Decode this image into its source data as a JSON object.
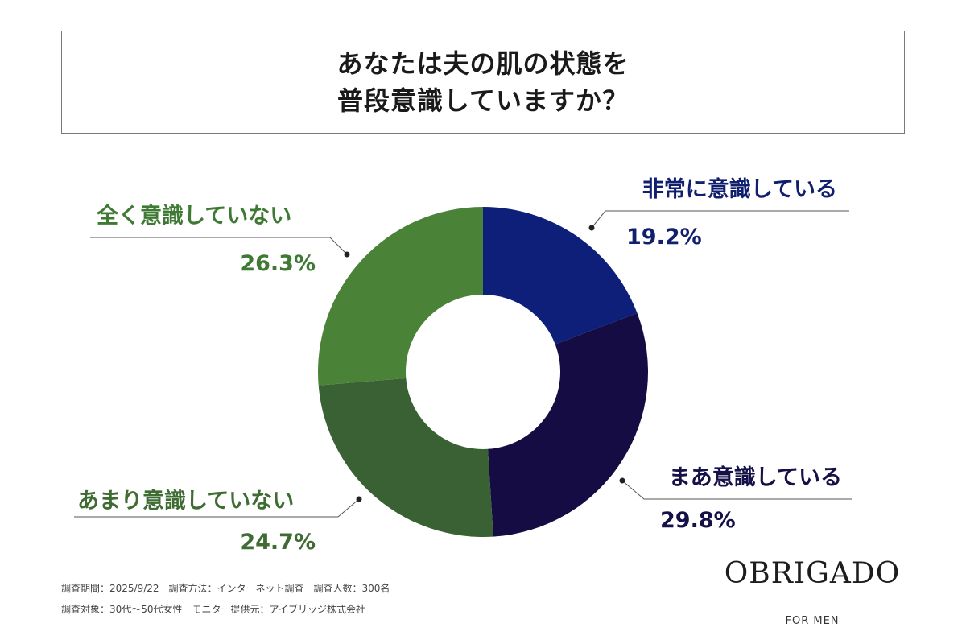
{
  "header": {
    "title_line1": "あなたは夫の肌の状態を",
    "title_line2": "普段意識していますか？"
  },
  "chart_data": {
    "type": "pie",
    "donut": true,
    "slices": [
      {
        "label": "非常に意識している",
        "value": 19.2,
        "value_text": "19.2%",
        "color": "#0e1f7a",
        "label_color": "#10206f"
      },
      {
        "label": "まあ意識している",
        "value": 29.8,
        "value_text": "29.8%",
        "color": "#140c42",
        "label_color": "#151048"
      },
      {
        "label": "あまり意識していない",
        "value": 24.7,
        "value_text": "24.7%",
        "color": "#3a6133",
        "label_color": "#3e6c33"
      },
      {
        "label": "全く意識していない",
        "value": 26.3,
        "value_text": "26.3%",
        "color": "#4a8237",
        "label_color": "#3f7a34"
      }
    ]
  },
  "footer": {
    "line1": "調査期間：2025/9/22　調査方法：インターネット調査　調査人数：300名",
    "line2": "調査対象：30代〜50代女性　モニター提供元：アイブリッジ株式会社"
  },
  "brand": {
    "logo": "OBRIGADO",
    "sub": "FOR MEN"
  }
}
